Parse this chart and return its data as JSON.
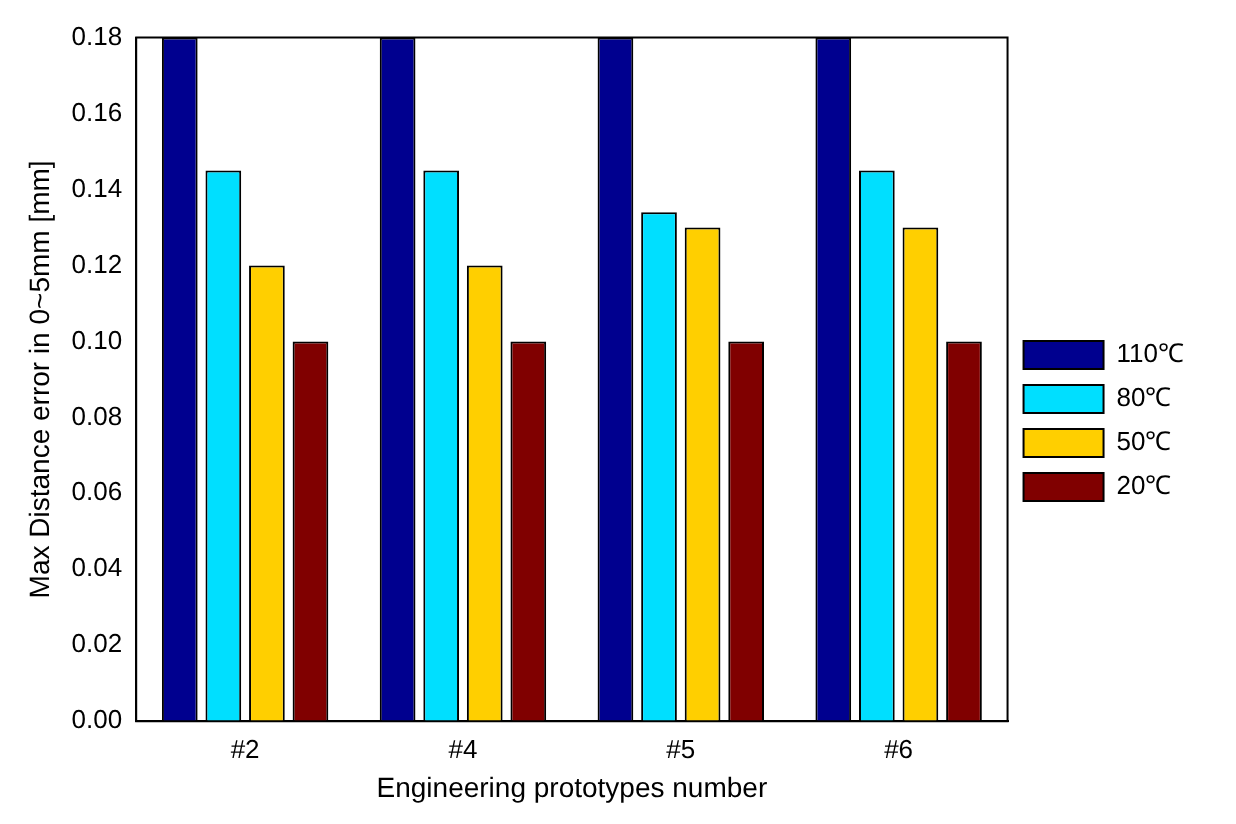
{
  "chart_data": {
    "type": "bar",
    "xlabel": "Engineering prototypes number",
    "ylabel": "Max Distance error in 0~5mm [mm]",
    "categories": [
      "#2",
      "#4",
      "#5",
      "#6"
    ],
    "series": [
      {
        "name": "110℃",
        "color": "#00008f",
        "values": [
          0.18,
          0.18,
          0.18,
          0.18
        ]
      },
      {
        "name": "80℃",
        "color": "#00dfff",
        "values": [
          0.145,
          0.145,
          0.134,
          0.145
        ]
      },
      {
        "name": "50℃",
        "color": "#ffcf00",
        "values": [
          0.12,
          0.12,
          0.13,
          0.13
        ]
      },
      {
        "name": "20℃",
        "color": "#800000",
        "values": [
          0.1,
          0.1,
          0.1,
          0.1
        ]
      }
    ],
    "ylim": [
      0,
      0.18
    ],
    "yticks": [
      {
        "value": 0,
        "label": "0.00"
      },
      {
        "value": 0.02,
        "label": "0.02"
      },
      {
        "value": 0.04,
        "label": "0.04"
      },
      {
        "value": 0.06,
        "label": "0.06"
      },
      {
        "value": 0.08,
        "label": "0.08"
      },
      {
        "value": 0.1,
        "label": "0.10"
      },
      {
        "value": 0.12,
        "label": "0.12"
      },
      {
        "value": 0.14,
        "label": "0.14"
      },
      {
        "value": 0.16,
        "label": "0.16"
      },
      {
        "value": 0.18,
        "label": "0.18"
      }
    ],
    "grid": false,
    "legend": "right"
  }
}
